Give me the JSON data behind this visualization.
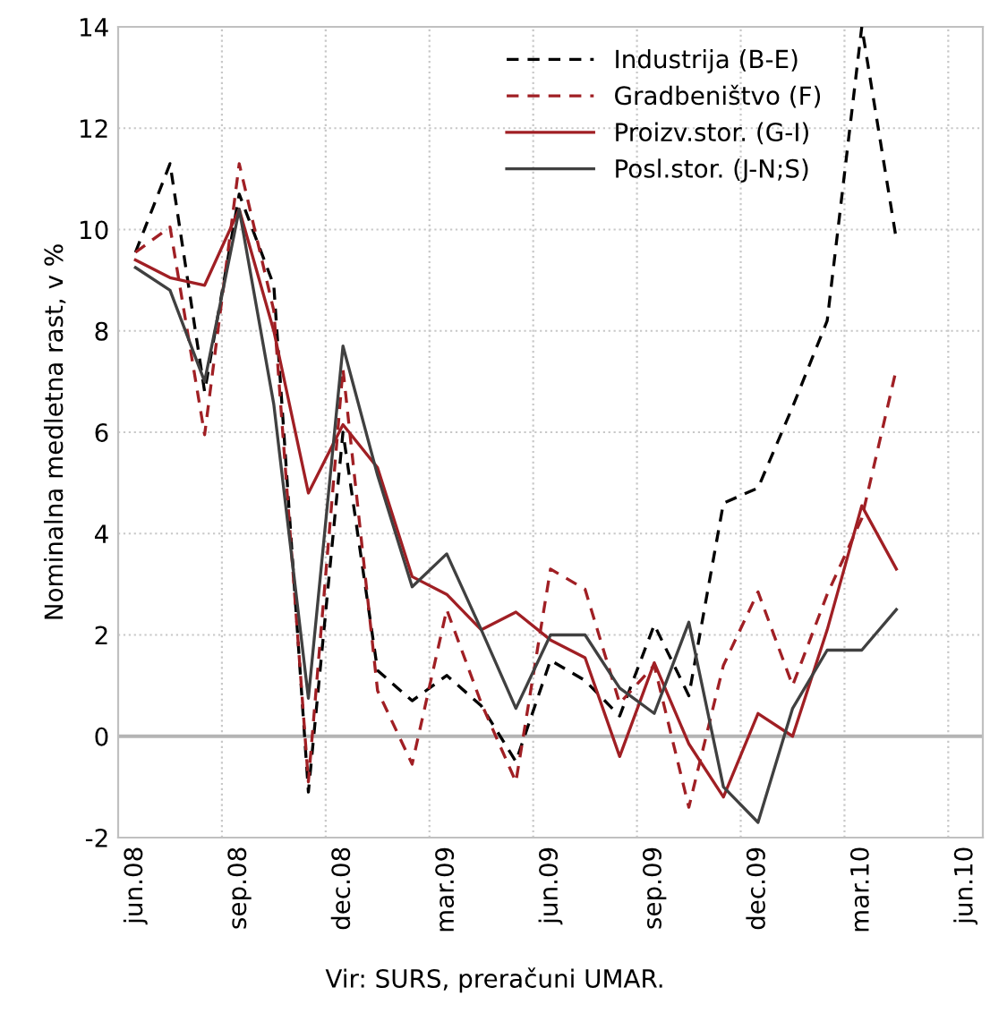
{
  "chart_data": {
    "type": "line",
    "ylabel": "Nominalna medletna rast, v %",
    "annotations": [
      "Vir: SURS, preračuni UMAR."
    ],
    "categories": [
      "jun.08",
      null,
      null,
      "sep.08",
      null,
      null,
      "dec.08",
      null,
      null,
      "mar.09",
      null,
      null,
      "jun.09",
      null,
      null,
      "sep.09",
      null,
      null,
      "dec.09",
      null,
      null,
      "mar.10",
      null,
      null,
      "jun.10"
    ],
    "series": [
      {
        "name": "Industrija (B-E)",
        "color": "#000000",
        "line_style": "dashed",
        "values": [
          9.55,
          11.3,
          6.8,
          10.7,
          8.9,
          -1.1,
          6.0,
          1.3,
          0.7,
          1.2,
          0.6,
          -0.5,
          1.5,
          1.1,
          0.4,
          2.2,
          0.8,
          4.6,
          4.9,
          6.5,
          8.2,
          14.0,
          9.8,
          null,
          null
        ]
      },
      {
        "name": "Gradbeništvo (F)",
        "color": "#a01f24",
        "line_style": "dashed",
        "values": [
          9.55,
          10.05,
          5.95,
          11.3,
          8.4,
          -0.9,
          7.25,
          0.9,
          -0.55,
          2.5,
          0.65,
          -0.9,
          3.3,
          2.9,
          0.65,
          1.4,
          -1.4,
          1.4,
          2.85,
          1.0,
          2.8,
          4.3,
          7.25,
          null,
          null
        ]
      },
      {
        "name": "Proizv.stor. (G-I)",
        "color": "#a01f24",
        "line_style": "solid",
        "values": [
          9.4,
          9.05,
          8.9,
          10.4,
          8.0,
          4.8,
          6.15,
          5.3,
          3.15,
          2.8,
          2.1,
          2.45,
          1.9,
          1.55,
          -0.4,
          1.45,
          -0.15,
          -1.2,
          0.45,
          0.0,
          2.1,
          4.55,
          3.3,
          null,
          null
        ]
      },
      {
        "name": "Posl.stor. (J-N;S)",
        "color": "#404040",
        "line_style": "solid",
        "values": [
          9.25,
          8.8,
          7.0,
          10.4,
          6.55,
          0.75,
          7.7,
          5.15,
          2.95,
          3.6,
          2.1,
          0.55,
          2.0,
          2.0,
          0.95,
          0.45,
          2.25,
          -1.0,
          -1.7,
          0.55,
          1.7,
          1.7,
          2.5,
          null,
          null
        ]
      }
    ],
    "ylim": [
      -2,
      14
    ],
    "yticks": [
      -2,
      0,
      2,
      4,
      6,
      8,
      10,
      12,
      14
    ],
    "ref_lines": [
      {
        "axis": "y",
        "value": 0,
        "color": "#b4b4b4"
      }
    ],
    "grid": true,
    "legend": "top right",
    "marker": "none"
  }
}
